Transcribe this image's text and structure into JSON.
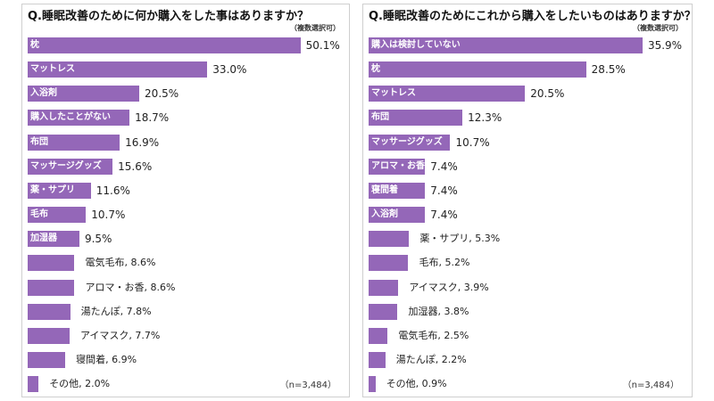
{
  "chart_data": [
    {
      "type": "bar",
      "orientation": "horizontal",
      "title": "Q.睡眠改善のために何か購入をした事はありますか？",
      "note": "（複数選択可）",
      "sample": "（n=3,484）",
      "bar_color": "#9467b8",
      "xlim": [
        0,
        60
      ],
      "grid": false,
      "categories": [
        "枕",
        "マットレス",
        "入浴剤",
        "購入したことがない",
        "布団",
        "マッサージグッズ",
        "薬・サプリ",
        "毛布",
        "加湿器",
        "電気毛布",
        "アロマ・お香",
        "湯たんぽ",
        "アイマスク",
        "寝間着",
        "その他"
      ],
      "values": [
        50.1,
        33.0,
        20.5,
        18.7,
        16.9,
        15.6,
        11.6,
        10.7,
        9.5,
        8.6,
        8.6,
        7.8,
        7.7,
        6.9,
        2.0
      ],
      "value_labels": [
        "50.1%",
        "33.0%",
        "20.5%",
        "18.7%",
        "16.9%",
        "15.6%",
        "11.6%",
        "10.7%",
        "9.5%",
        "電気毛布, 8.6%",
        "アロマ・お香, 8.6%",
        "湯たんぽ, 7.8%",
        "アイマスク, 7.7%",
        "寝間着, 6.9%",
        "その他, 2.0%"
      ],
      "inside_label": [
        true,
        true,
        true,
        true,
        true,
        true,
        true,
        true,
        true,
        false,
        false,
        false,
        false,
        false,
        false
      ]
    },
    {
      "type": "bar",
      "orientation": "horizontal",
      "title": "Q.睡眠改善のためにこれから購入をしたいものはありますか？",
      "note": "（複数選択可）",
      "sample": "（n=3,484）",
      "bar_color": "#9467b8",
      "xlim": [
        0,
        42
      ],
      "grid": false,
      "categories": [
        "購入は検討していない",
        "枕",
        "マットレス",
        "布団",
        "マッサージグッズ",
        "アロマ・お香",
        "寝間着",
        "入浴剤",
        "薬・サプリ",
        "毛布",
        "アイマスク",
        "加湿器",
        "電気毛布",
        "湯たんぽ",
        "その他"
      ],
      "values": [
        35.9,
        28.5,
        20.5,
        12.3,
        10.7,
        7.4,
        7.4,
        7.4,
        5.3,
        5.2,
        3.9,
        3.8,
        2.5,
        2.2,
        0.9
      ],
      "value_labels": [
        "35.9%",
        "28.5%",
        "20.5%",
        "12.3%",
        "10.7%",
        "7.4%",
        "7.4%",
        "7.4%",
        "薬・サプリ, 5.3%",
        "毛布, 5.2%",
        "アイマスク, 3.9%",
        "加湿器, 3.8%",
        "電気毛布, 2.5%",
        "湯たんぽ, 2.2%",
        "その他, 0.9%"
      ],
      "inside_label": [
        true,
        true,
        true,
        true,
        true,
        true,
        true,
        true,
        false,
        false,
        false,
        false,
        false,
        false,
        false
      ]
    }
  ]
}
